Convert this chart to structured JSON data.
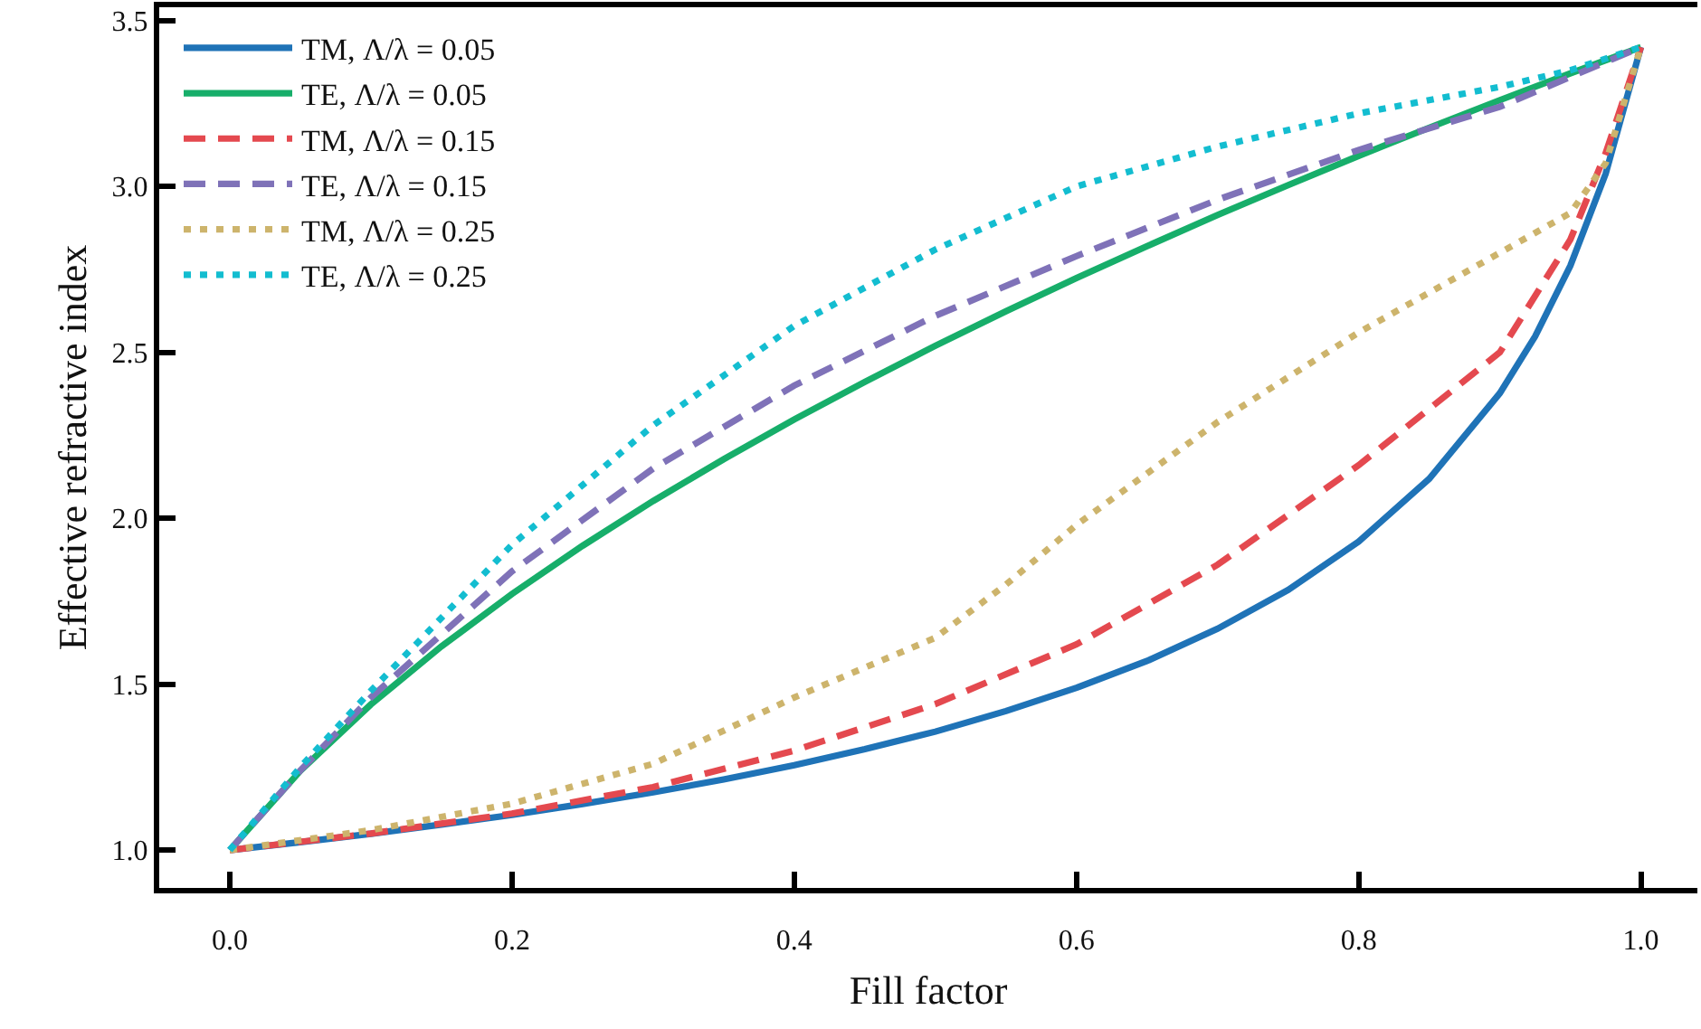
{
  "chart_data": {
    "type": "line",
    "xlabel": "Fill factor",
    "ylabel": "Effective refractive index",
    "xlim": [
      -0.05,
      1.04
    ],
    "xticks": [
      {
        "value": 0,
        "label": "0.0"
      },
      0.2,
      0.4,
      0.6,
      0.8,
      {
        "value": 1,
        "label": "1.0"
      }
    ],
    "ylim": [
      0.886,
      3.54
    ],
    "yticks": [
      {
        "value": 1,
        "label": "1.0"
      },
      1.5,
      {
        "value": 2,
        "label": "2.0"
      },
      2.5,
      {
        "value": 3,
        "label": "3.0"
      },
      3.5
    ],
    "grid": false,
    "legend": "top left",
    "marker": "none",
    "series": [
      {
        "name": "TM, Λ/λ = 0.05",
        "color": "#1f73b7",
        "line_style": "solid",
        "x": [
          0,
          0.05,
          0.1,
          0.15,
          0.2,
          0.25,
          0.3,
          0.35,
          0.4,
          0.45,
          0.5,
          0.55,
          0.6,
          0.65,
          0.7,
          0.75,
          0.8,
          0.85,
          0.9,
          0.925,
          0.95,
          0.975,
          1
        ],
        "values": [
          1,
          1.024,
          1.049,
          1.077,
          1.106,
          1.139,
          1.174,
          1.213,
          1.256,
          1.304,
          1.357,
          1.419,
          1.489,
          1.57,
          1.667,
          1.784,
          1.93,
          2.119,
          2.377,
          2.548,
          2.761,
          3.038,
          3.42
        ]
      },
      {
        "name": "TE, Λ/λ = 0.05",
        "color": "#17ae6a",
        "line_style": "solid",
        "x": [
          0,
          0.05,
          0.1,
          0.15,
          0.2,
          0.25,
          0.3,
          0.35,
          0.4,
          0.45,
          0.5,
          0.55,
          0.6,
          0.65,
          0.7,
          0.75,
          0.8,
          0.85,
          0.9,
          0.95,
          1
        ],
        "values": [
          1,
          1.239,
          1.439,
          1.614,
          1.772,
          1.917,
          2.052,
          2.178,
          2.298,
          2.411,
          2.52,
          2.624,
          2.724,
          2.82,
          2.914,
          3.004,
          3.092,
          3.177,
          3.26,
          3.341,
          3.42
        ]
      },
      {
        "name": "TM, Λ/λ = 0.15",
        "color": "#e4494f",
        "line_style": "dashed",
        "x": [
          0,
          0.1,
          0.2,
          0.3,
          0.4,
          0.5,
          0.6,
          0.7,
          0.8,
          0.85,
          0.9,
          0.95,
          0.975,
          1
        ],
        "values": [
          1,
          1.05,
          1.11,
          1.19,
          1.3,
          1.44,
          1.62,
          1.86,
          2.16,
          2.33,
          2.5,
          2.84,
          3.1,
          3.42
        ]
      },
      {
        "name": "TE, Λ/λ = 0.15",
        "color": "#7f72b8",
        "line_style": "dashed",
        "x": [
          0,
          0.05,
          0.1,
          0.2,
          0.3,
          0.4,
          0.5,
          0.6,
          0.7,
          0.8,
          0.9,
          1
        ],
        "values": [
          1,
          1.24,
          1.46,
          1.84,
          2.15,
          2.4,
          2.61,
          2.79,
          2.96,
          3.11,
          3.24,
          3.42
        ]
      },
      {
        "name": "TM, Λ/λ = 0.25",
        "color": "#cdb46c",
        "line_style": "dotted",
        "x": [
          0,
          0.1,
          0.2,
          0.3,
          0.4,
          0.5,
          0.55,
          0.6,
          0.7,
          0.8,
          0.9,
          0.95,
          0.975,
          1
        ],
        "values": [
          1,
          1.06,
          1.14,
          1.26,
          1.46,
          1.64,
          1.8,
          1.98,
          2.29,
          2.56,
          2.8,
          2.92,
          3.07,
          3.42
        ]
      },
      {
        "name": "TE, Λ/λ = 0.25",
        "color": "#13bdd0",
        "line_style": "dotted",
        "x": [
          0,
          0.05,
          0.1,
          0.2,
          0.3,
          0.4,
          0.5,
          0.6,
          0.7,
          0.8,
          0.9,
          0.95,
          1
        ],
        "values": [
          1,
          1.25,
          1.48,
          1.92,
          2.28,
          2.58,
          2.81,
          3.0,
          3.12,
          3.22,
          3.3,
          3.35,
          3.42
        ]
      }
    ]
  }
}
